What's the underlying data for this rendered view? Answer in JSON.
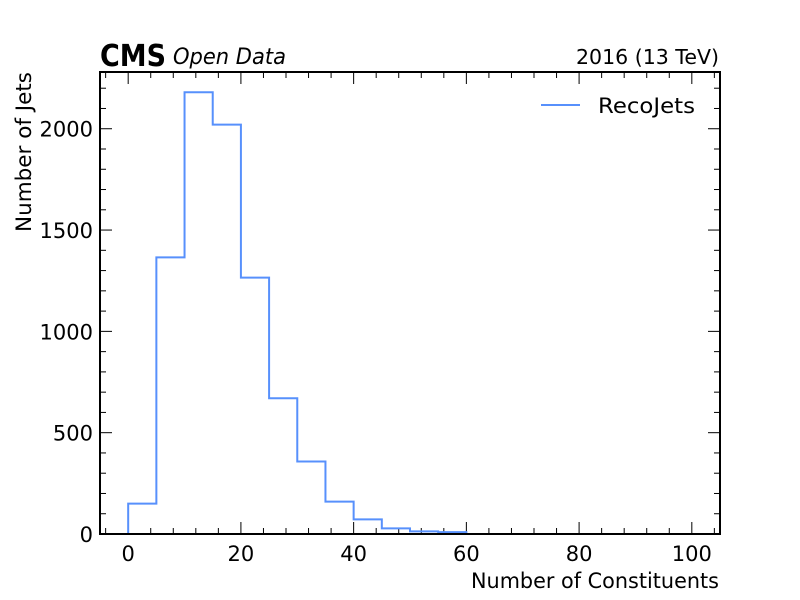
{
  "chart_data": {
    "type": "histogram",
    "experiment_label": "CMS",
    "experiment_sublabel": "Open Data",
    "run_label": "2016 (13 TeV)",
    "xlabel": "Number of Constituents",
    "ylabel": "Number of Jets",
    "xlim": [
      -5,
      105
    ],
    "ylim": [
      0,
      2280
    ],
    "x_ticks": [
      0,
      20,
      40,
      60,
      80,
      100
    ],
    "y_ticks": [
      0,
      500,
      1000,
      1500,
      2000
    ],
    "x_minor_step": 4,
    "y_minor_step": 100,
    "legend_position": "top-right",
    "grid": false,
    "bin_edges": [
      0,
      5,
      10,
      15,
      20,
      25,
      30,
      35,
      40,
      45,
      50,
      55,
      60
    ],
    "series": [
      {
        "name": "RecoJets",
        "color": "#5790fc",
        "values": [
          150,
          1365,
          2180,
          2020,
          1265,
          670,
          358,
          160,
          72,
          28,
          13,
          9
        ]
      }
    ]
  }
}
